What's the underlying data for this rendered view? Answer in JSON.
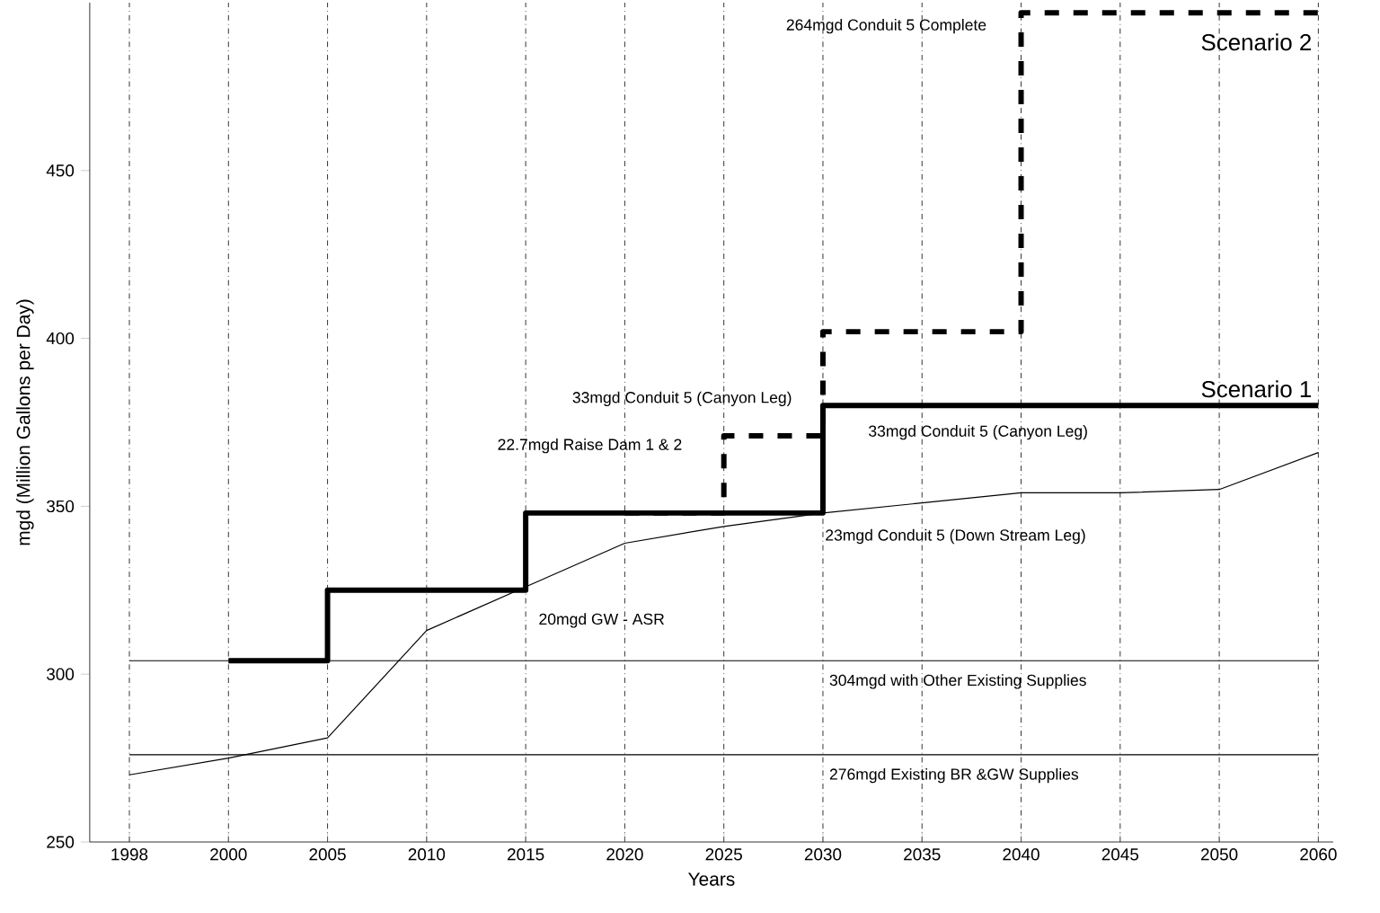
{
  "chart_data": {
    "type": "line",
    "xlabel": "Years",
    "ylabel": "mgd (Million Gallons per Day)",
    "categories": [
      "1998",
      "2000",
      "2005",
      "2010",
      "2015",
      "2020",
      "2025",
      "2030",
      "2035",
      "2040",
      "2045",
      "2050",
      "2060"
    ],
    "ylim": [
      250,
      500
    ],
    "yticks": [
      250,
      300,
      350,
      400,
      450
    ],
    "grid": "x",
    "series": [
      {
        "type": "line",
        "color": "#000000",
        "line_style": "solid",
        "values": [
          270,
          275,
          281,
          313,
          326,
          339,
          344,
          348,
          351,
          354,
          354,
          355,
          366
        ]
      },
      {
        "type": "step",
        "name": "Scenario 1",
        "color": "#000000",
        "line_style": "solid",
        "values": [
          null,
          304,
          325,
          325,
          348,
          348,
          348,
          380,
          380,
          380,
          380,
          380,
          380
        ]
      },
      {
        "type": "step",
        "name": "Scenario 2",
        "color": "#000000",
        "line_style": "dashed",
        "values": [
          null,
          null,
          null,
          null,
          null,
          348,
          371,
          402,
          402,
          497,
          497,
          497,
          497
        ]
      }
    ],
    "ref_lines": [
      {
        "axis": "y",
        "value": 304,
        "label": "304mgd with Other Existing Supplies"
      },
      {
        "axis": "y",
        "value": 276,
        "label": "276mgd Existing BR &GW Supplies"
      }
    ],
    "annotations": [
      {
        "text": "264mgd Conduit 5 Complete",
        "x": "2040",
        "y": 493
      },
      {
        "text": "33mgd Conduit 5 (Canyon Leg)",
        "x": "2030",
        "y": 382
      },
      {
        "text": "22.7mgd Raise Dam 1 & 2",
        "x": "2025",
        "y": 368
      },
      {
        "text": "33mgd Conduit 5 (Canyon Leg)",
        "x": "2030",
        "y": 372
      },
      "23mgd Conduit 5 (Down Stream Leg)",
      "20mgd GW - ASR"
    ]
  }
}
